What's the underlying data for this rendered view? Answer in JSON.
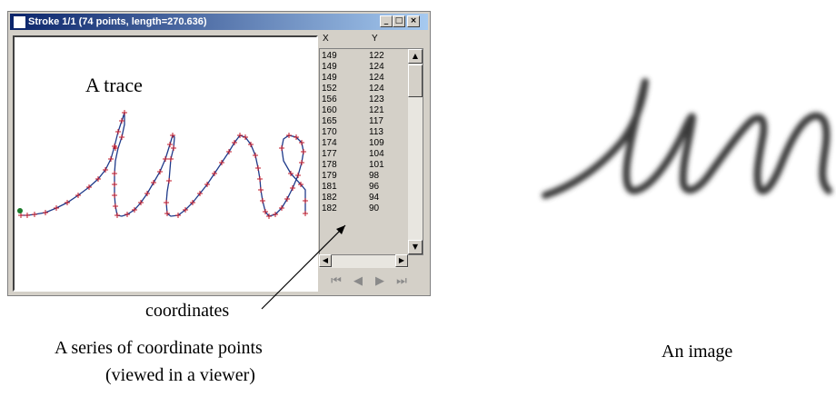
{
  "window": {
    "title": "Stroke 1/1 (74 points, length=270.636)",
    "buttons": [
      "_",
      "□",
      "×"
    ]
  },
  "canvas": {
    "trace_label": "A trace"
  },
  "list": {
    "headers": [
      "X",
      "Y"
    ],
    "rows": [
      [
        "149",
        "122"
      ],
      [
        "149",
        "124"
      ],
      [
        "149",
        "124"
      ],
      [
        "152",
        "124"
      ],
      [
        "156",
        "123"
      ],
      [
        "160",
        "121"
      ],
      [
        "165",
        "117"
      ],
      [
        "170",
        "113"
      ],
      [
        "174",
        "109"
      ],
      [
        "177",
        "104"
      ],
      [
        "178",
        "101"
      ],
      [
        "179",
        "98"
      ],
      [
        "181",
        "96"
      ],
      [
        "182",
        "94"
      ],
      [
        "182",
        "90"
      ]
    ]
  },
  "nav": {
    "first": "⏮",
    "prev": "◀",
    "next": "▶",
    "last": "⏭"
  },
  "labels": {
    "coordinates": "coordinates",
    "left_caption_1": "A series of coordinate points",
    "left_caption_2": "(viewed in a viewer)",
    "right_caption": "An image"
  },
  "colors": {
    "trace": "#1f3a8a",
    "points": "#c0182a",
    "start": "#1a7a2a",
    "title_bar": "#0a246a"
  }
}
